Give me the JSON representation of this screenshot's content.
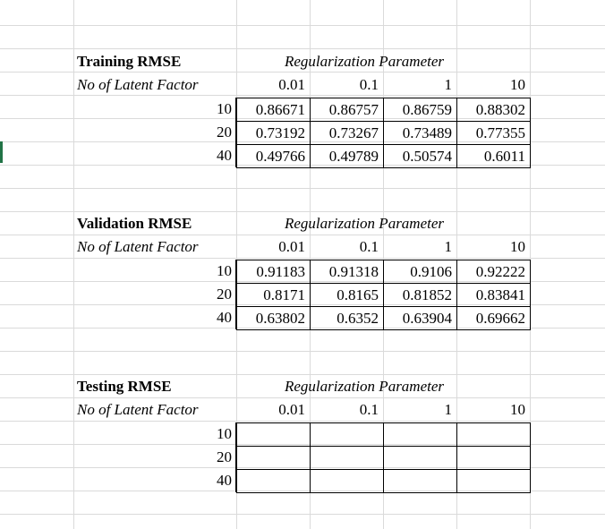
{
  "blocks": [
    {
      "title": "Training RMSE",
      "header": "Regularization Parameter",
      "row_header": "No of Latent Factor",
      "columns": [
        "0.01",
        "0.1",
        "1",
        "10"
      ],
      "row_labels": [
        "10",
        "20",
        "40"
      ],
      "rows": [
        [
          "0.86671",
          "0.86757",
          "0.86759",
          "0.88302"
        ],
        [
          "0.73192",
          "0.73267",
          "0.73489",
          "0.77355"
        ],
        [
          "0.49766",
          "0.49789",
          "0.50574",
          "0.6011"
        ]
      ]
    },
    {
      "title": "Validation RMSE",
      "header": "Regularization Parameter",
      "row_header": "No of Latent Factor",
      "columns": [
        "0.01",
        "0.1",
        "1",
        "10"
      ],
      "row_labels": [
        "10",
        "20",
        "40"
      ],
      "rows": [
        [
          "0.91183",
          "0.91318",
          "0.9106",
          "0.92222"
        ],
        [
          "0.8171",
          "0.8165",
          "0.81852",
          "0.83841"
        ],
        [
          "0.63802",
          "0.6352",
          "0.63904",
          "0.69662"
        ]
      ]
    },
    {
      "title": "Testing RMSE",
      "header": "Regularization Parameter",
      "row_header": "No of Latent Factor",
      "columns": [
        "0.01",
        "0.1",
        "1",
        "10"
      ],
      "row_labels": [
        "10",
        "20",
        "40"
      ],
      "rows": [
        [
          "",
          "",
          "",
          ""
        ],
        [
          "",
          "",
          "",
          ""
        ],
        [
          "",
          "",
          "",
          ""
        ]
      ]
    }
  ]
}
